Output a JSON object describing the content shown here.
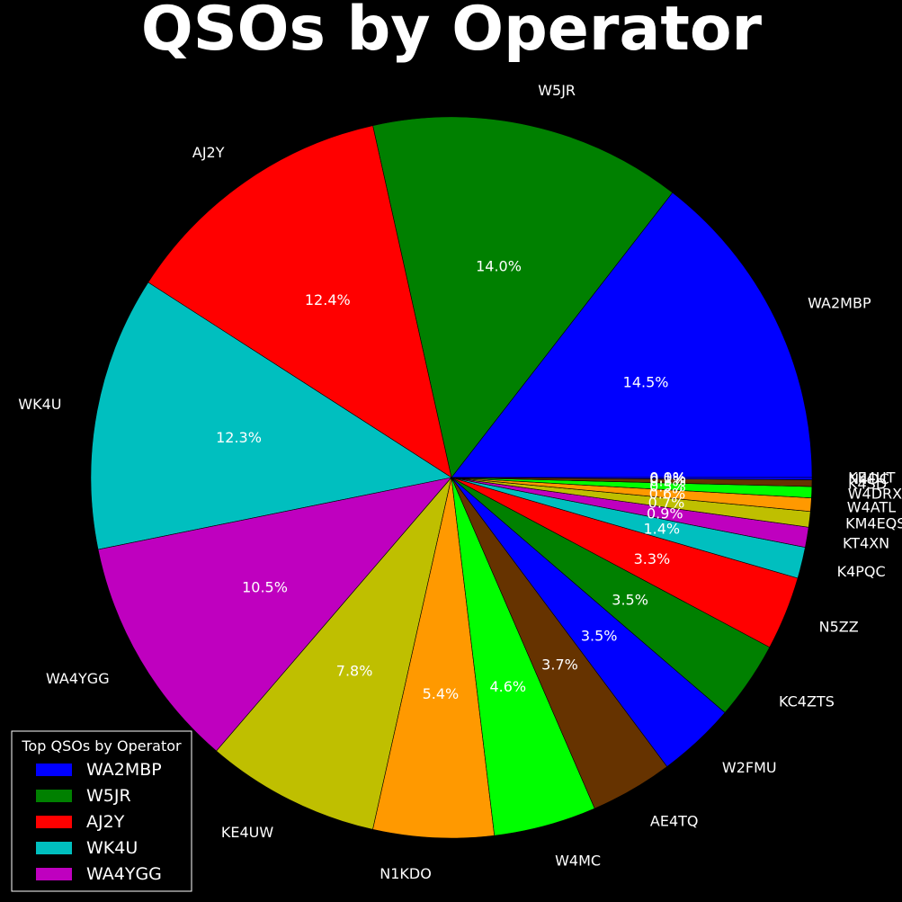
{
  "chart_data": {
    "type": "pie",
    "title": "QSOs by Operator",
    "categories": [
      "WA2MBP",
      "W5JR",
      "AJ2Y",
      "WK4U",
      "WA4YGG",
      "KE4UW",
      "N1KDO",
      "W4MC",
      "AE4TQ",
      "W2FMU",
      "KC4ZTS",
      "N5ZZ",
      "K4PQC",
      "KT4XN",
      "KM4EQS",
      "W4ATL",
      "W4DRX",
      "K4SD",
      "N4DC",
      "KE4UT"
    ],
    "values": [
      14.5,
      14.0,
      12.4,
      12.3,
      10.5,
      7.8,
      5.4,
      4.6,
      3.7,
      3.5,
      3.5,
      3.3,
      1.4,
      0.9,
      0.7,
      0.6,
      0.5,
      0.3,
      0.1,
      0.0
    ],
    "percent_labels": [
      "14.5%",
      "14.0%",
      "12.4%",
      "12.3%",
      "10.5%",
      "7.8%",
      "5.4%",
      "4.6%",
      "3.7%",
      "3.5%",
      "3.5%",
      "3.3%",
      "1.4%",
      "0.9%",
      "0.7%",
      "0.6%",
      "0.5%",
      "0.3%",
      "0.1%",
      "0.0%"
    ],
    "colors": [
      "#0000ff",
      "#008000",
      "#ff0000",
      "#00bfbf",
      "#bf00bf",
      "#bfbf00",
      "#ff9900",
      "#00ff00",
      "#663300",
      "#0000ff",
      "#008000",
      "#ff0000",
      "#00bfbf",
      "#bf00bf",
      "#bfbf00",
      "#ff9900",
      "#00ff00",
      "#663300",
      "#0000ff",
      "#008000"
    ],
    "start_angle_deg": 0,
    "direction": "counterclockwise",
    "legend": {
      "title": "Top QSOs by Operator",
      "position": "bottom-left",
      "entries": [
        "WA2MBP",
        "W5JR",
        "AJ2Y",
        "WK4U",
        "WA4YGG"
      ]
    }
  }
}
